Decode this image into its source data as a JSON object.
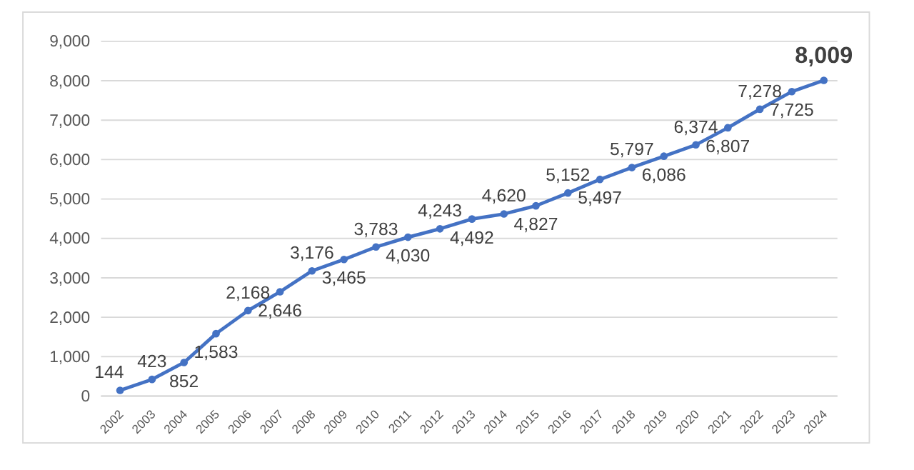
{
  "chart_data": {
    "type": "line",
    "categories": [
      "2002",
      "2003",
      "2004",
      "2005",
      "2006",
      "2007",
      "2008",
      "2009",
      "2010",
      "2011",
      "2012",
      "2013",
      "2014",
      "2015",
      "2016",
      "2017",
      "2018",
      "2019",
      "2020",
      "2021",
      "2022",
      "2023",
      "2024"
    ],
    "series": [
      {
        "color": "#4472c4",
        "values": [
          144,
          423,
          852,
          1583,
          2168,
          2646,
          3176,
          3465,
          3783,
          4030,
          4243,
          4492,
          4620,
          4827,
          5152,
          5497,
          5797,
          6086,
          6374,
          6807,
          7278,
          7725,
          8009
        ],
        "value_labels": [
          "144",
          "423",
          "852",
          "1,583",
          "2,168",
          "2,646",
          "3,176",
          "3,465",
          "3,783",
          "4,030",
          "4,243",
          "4,492",
          "4,620",
          "4,827",
          "5,152",
          "5,497",
          "5,797",
          "6,086",
          "6,374",
          "6,807",
          "7,278",
          "7,725",
          "8,009"
        ]
      }
    ],
    "ylim": [
      0,
      9000
    ],
    "yticks": [
      {
        "value": 0,
        "label": "0"
      },
      {
        "value": 1000,
        "label": "1,000"
      },
      {
        "value": 2000,
        "label": "2,000"
      },
      {
        "value": 3000,
        "label": "3,000"
      },
      {
        "value": 4000,
        "label": "4,000"
      },
      {
        "value": 5000,
        "label": "5,000"
      },
      {
        "value": 6000,
        "label": "6,000"
      },
      {
        "value": 7000,
        "label": "7,000"
      },
      {
        "value": 8000,
        "label": "8,000"
      },
      {
        "value": 9000,
        "label": "9,000"
      }
    ],
    "grid": "y",
    "marker": "circle",
    "line_style": "solid"
  }
}
